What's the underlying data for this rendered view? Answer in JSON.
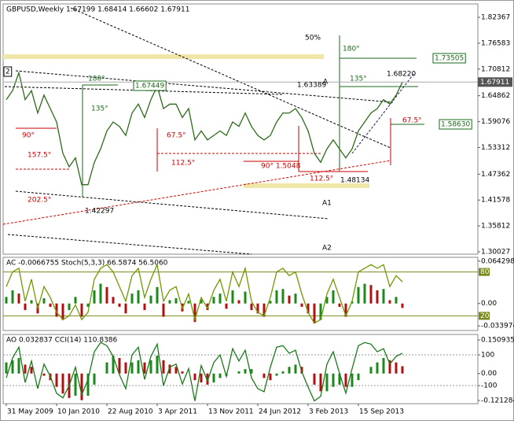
{
  "chart_data": [
    {
      "type": "line",
      "title": "GBPUSD,Weekly  1.67199 1.68414 1.66602 1.67911",
      "xlim": [
        -2,
        300
      ],
      "ylim": [
        1.295,
        1.8535
      ],
      "yticks": [
        1.82367,
        1.76583,
        1.70812,
        1.64862,
        1.59076,
        1.53312,
        1.47362,
        1.41578,
        1.35812,
        1.30027
      ],
      "x": [
        0,
        4,
        8,
        12,
        16,
        20,
        24,
        28,
        32,
        36,
        40,
        44,
        48,
        52,
        56,
        60,
        64,
        68,
        72,
        76,
        80,
        84,
        88,
        92,
        96,
        100,
        104,
        108,
        112,
        116,
        120,
        124,
        128,
        132,
        136,
        140,
        144,
        148,
        152,
        156,
        160,
        164,
        168,
        172,
        176,
        180,
        184,
        188,
        192,
        196,
        200,
        204,
        208,
        212,
        216,
        220,
        224,
        228,
        232,
        236,
        240,
        244,
        248,
        252
      ],
      "series": [
        {
          "color": "#2e6b1a",
          "style": "line",
          "values": [
            1.64,
            1.66,
            1.7,
            1.64,
            1.66,
            1.61,
            1.65,
            1.62,
            1.59,
            1.52,
            1.49,
            1.51,
            1.45,
            1.45,
            1.5,
            1.53,
            1.57,
            1.59,
            1.58,
            1.56,
            1.61,
            1.63,
            1.6,
            1.64,
            1.67,
            1.62,
            1.63,
            1.63,
            1.6,
            1.62,
            1.55,
            1.57,
            1.55,
            1.56,
            1.57,
            1.56,
            1.59,
            1.58,
            1.61,
            1.58,
            1.56,
            1.55,
            1.56,
            1.59,
            1.61,
            1.61,
            1.62,
            1.6,
            1.57,
            1.52,
            1.5,
            1.53,
            1.55,
            1.53,
            1.51,
            1.53,
            1.57,
            1.59,
            1.61,
            1.62,
            1.64,
            1.63,
            1.65,
            1.67911
          ]
        }
      ],
      "annotations": [
        "2",
        "50%",
        "180°",
        "1.73505",
        "1.68220",
        "135°",
        "A",
        "1.63389",
        "180°",
        "1.67449",
        "135°",
        "1.58630",
        "67.5°",
        "90°",
        "67.5°",
        "157.5°",
        "112.5°",
        "90° 1.5048",
        "112.5°",
        "1.48134",
        "202.5°",
        "1.42297",
        "A1",
        "A2"
      ]
    },
    {
      "type": "indicator",
      "title": "AC -0.0066755  Stoch(5,3,3) 66.5874 56.5060",
      "xlim": [
        -2,
        300
      ],
      "ylim": [
        0,
        100
      ],
      "y2lim": [
        -0.0409,
        0.07
      ],
      "y2ticks": [
        0.064298,
        {
          "value": 0,
          "label": "0.00"
        },
        -0.033974
      ],
      "levels": [
        80,
        20
      ],
      "level_color": "#7a8a1a",
      "x": [
        0,
        4,
        8,
        12,
        16,
        20,
        24,
        28,
        32,
        36,
        40,
        44,
        48,
        52,
        56,
        60,
        64,
        68,
        72,
        76,
        80,
        84,
        88,
        92,
        96,
        100,
        104,
        108,
        112,
        116,
        120,
        124,
        128,
        132,
        136,
        140,
        144,
        148,
        152,
        156,
        160,
        164,
        168,
        172,
        176,
        180,
        184,
        188,
        192,
        196,
        200,
        204,
        208,
        212,
        216,
        220,
        224,
        228,
        232,
        236,
        240,
        244,
        248,
        252
      ],
      "series": [
        {
          "style": "histogram",
          "axis": "y2",
          "colors": [
            "#1a8a1a",
            "#b01010"
          ],
          "values": [
            0.01,
            0.02,
            0.015,
            -0.01,
            0.005,
            -0.015,
            0.008,
            -0.005,
            -0.02,
            -0.025,
            -0.01,
            0.01,
            -0.02,
            -0.005,
            0.02,
            0.03,
            0.025,
            0.01,
            -0.005,
            -0.015,
            0.015,
            0.02,
            -0.01,
            0.012,
            0.025,
            -0.02,
            0.005,
            0.008,
            -0.012,
            0.004,
            -0.028,
            0.006,
            -0.01,
            0.01,
            0.015,
            -0.008,
            0.02,
            0.005,
            0.018,
            -0.01,
            -0.015,
            -0.02,
            0.004,
            0.02,
            0.022,
            0.012,
            0.015,
            -0.005,
            -0.015,
            -0.03,
            -0.025,
            0.01,
            0.02,
            -0.005,
            -0.02,
            0.003,
            0.025,
            0.03,
            0.028,
            0.02,
            0.022,
            0.005,
            0.01,
            -0.0066755
          ]
        },
        {
          "style": "line",
          "color": "#6f9a00",
          "values": [
            60,
            80,
            85,
            40,
            70,
            30,
            60,
            45,
            25,
            15,
            20,
            35,
            15,
            25,
            70,
            85,
            90,
            80,
            60,
            40,
            75,
            85,
            45,
            70,
            90,
            40,
            55,
            60,
            30,
            50,
            15,
            45,
            30,
            55,
            70,
            40,
            80,
            60,
            85,
            40,
            25,
            20,
            45,
            80,
            85,
            75,
            80,
            50,
            25,
            10,
            15,
            50,
            70,
            45,
            20,
            40,
            80,
            85,
            90,
            85,
            90,
            60,
            75,
            66.5874
          ]
        }
      ]
    },
    {
      "type": "indicator",
      "title": "AO 0.032837  CCI(14) 110.8386",
      "xlim": [
        -2,
        300
      ],
      "ylim": [
        -218,
        233
      ],
      "y2lim": [
        -0.1357,
        0.1759
      ],
      "yticks": [
        100,
        -100
      ],
      "y2ticks": [
        0.150935,
        {
          "value": 0,
          "label": "0.00"
        },
        -0.121284
      ],
      "xticks": [
        {
          "value": 0,
          "label": "31 May 2009"
        },
        {
          "value": 32,
          "label": "10 Jan 2010"
        },
        {
          "value": 64,
          "label": "22 Aug 2010"
        },
        {
          "value": 96,
          "label": "3 Apr 2011"
        },
        {
          "value": 128,
          "label": "13 Nov 2011"
        },
        {
          "value": 160,
          "label": "24 Jun 2012"
        },
        {
          "value": 192,
          "label": "3 Feb 2013"
        },
        {
          "value": 224,
          "label": "15 Sep 2013"
        }
      ],
      "x": [
        0,
        4,
        8,
        12,
        16,
        20,
        24,
        28,
        32,
        36,
        40,
        44,
        48,
        52,
        56,
        60,
        64,
        68,
        72,
        76,
        80,
        84,
        88,
        92,
        96,
        100,
        104,
        108,
        112,
        116,
        120,
        124,
        128,
        132,
        136,
        140,
        144,
        148,
        152,
        156,
        160,
        164,
        168,
        172,
        176,
        180,
        184,
        188,
        192,
        196,
        200,
        204,
        208,
        212,
        216,
        220,
        224,
        228,
        232,
        236,
        240,
        244,
        248,
        252
      ],
      "series": [
        {
          "style": "histogram",
          "axis": "y2",
          "colors": [
            "#1a8a1a",
            "#b01010"
          ],
          "values": [
            0.05,
            0.06,
            0.07,
            0.04,
            0.03,
            0.0,
            -0.01,
            -0.03,
            -0.06,
            -0.09,
            -0.11,
            -0.1,
            -0.12,
            -0.1,
            -0.05,
            0.0,
            0.05,
            0.08,
            0.07,
            0.05,
            0.05,
            0.06,
            0.05,
            0.06,
            0.08,
            0.06,
            0.04,
            0.03,
            0.01,
            0.0,
            -0.03,
            -0.04,
            -0.05,
            -0.04,
            -0.02,
            -0.01,
            0.0,
            0.01,
            0.02,
            0.02,
            0.0,
            -0.02,
            -0.03,
            -0.01,
            0.01,
            0.03,
            0.04,
            0.03,
            0.0,
            -0.05,
            -0.08,
            -0.08,
            -0.06,
            -0.05,
            -0.06,
            -0.06,
            -0.03,
            0.0,
            0.03,
            0.05,
            0.07,
            0.06,
            0.05,
            0.032837
          ]
        },
        {
          "style": "line",
          "color": "#1a7a1a",
          "values": [
            -50,
            80,
            150,
            -80,
            60,
            -120,
            40,
            -40,
            -150,
            -180,
            -100,
            20,
            -160,
            -60,
            120,
            180,
            160,
            90,
            -30,
            -120,
            100,
            150,
            -60,
            90,
            170,
            -100,
            20,
            40,
            -90,
            10,
            -200,
            30,
            -70,
            50,
            100,
            -40,
            140,
            60,
            130,
            -50,
            -120,
            -140,
            20,
            150,
            160,
            110,
            130,
            -10,
            -110,
            -200,
            -170,
            40,
            120,
            -20,
            -150,
            10,
            160,
            180,
            170,
            120,
            140,
            40,
            90,
            110.8386
          ]
        }
      ]
    }
  ]
}
